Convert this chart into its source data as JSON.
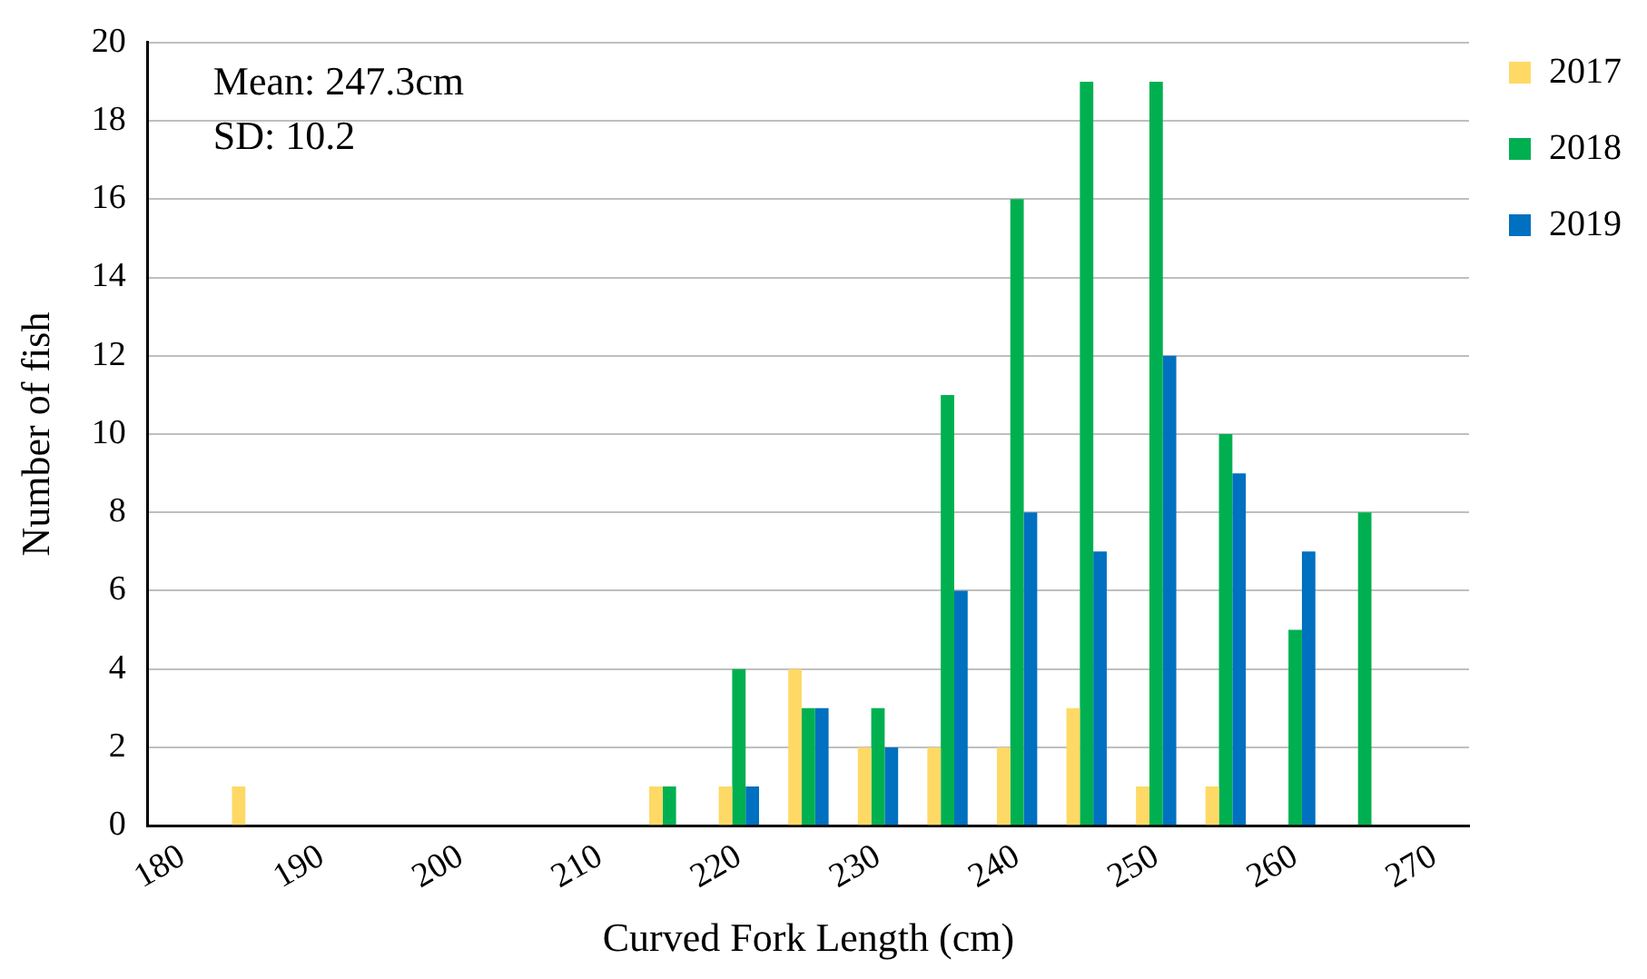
{
  "chart_data": {
    "type": "bar",
    "xlabel": "Curved Fork Length (cm)",
    "ylabel": "Number of fish",
    "categories": [
      "180",
      null,
      "190",
      null,
      "200",
      null,
      "210",
      null,
      "220",
      null,
      "230",
      null,
      "240",
      null,
      "250",
      null,
      "260",
      null,
      "270"
    ],
    "series": [
      {
        "name": "2017",
        "color": "#ffd966",
        "values": [
          null,
          1,
          null,
          null,
          null,
          null,
          null,
          1,
          1,
          4,
          2,
          2,
          2,
          3,
          1,
          1,
          null,
          null,
          null
        ]
      },
      {
        "name": "2018",
        "color": "#00b050",
        "values": [
          null,
          null,
          null,
          null,
          null,
          null,
          null,
          1,
          4,
          3,
          3,
          11,
          16,
          19,
          19,
          10,
          5,
          8,
          null
        ]
      },
      {
        "name": "2019",
        "color": "#0070c0",
        "values": [
          null,
          null,
          null,
          null,
          null,
          null,
          null,
          null,
          1,
          3,
          2,
          6,
          8,
          7,
          12,
          9,
          7,
          null,
          null
        ]
      }
    ],
    "ylim": [
      0,
      20
    ],
    "yticks": [
      0,
      2,
      4,
      6,
      8,
      10,
      12,
      14,
      16,
      18,
      20
    ],
    "grid": "y",
    "legend": "top right",
    "annotations": [
      "Mean: 247.3cm",
      "SD: 10.2"
    ]
  }
}
